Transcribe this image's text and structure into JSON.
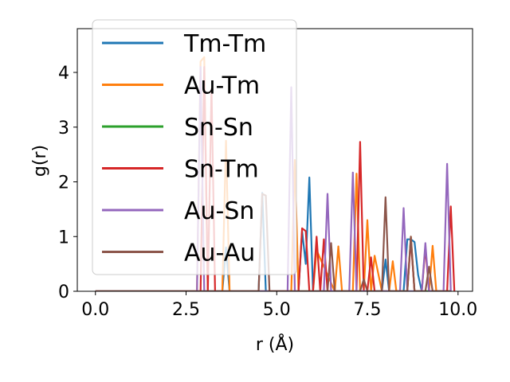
{
  "chart_data": {
    "type": "line",
    "title": "",
    "xlabel": "r (Å)",
    "ylabel": "g(r)",
    "xlim": [
      -0.5,
      10.4
    ],
    "ylim": [
      0,
      4.8
    ],
    "xticks": [
      0.0,
      2.5,
      5.0,
      7.5,
      10.0
    ],
    "xtick_labels": [
      "0.0",
      "2.5",
      "5.0",
      "7.5",
      "10.0"
    ],
    "yticks": [
      0,
      1,
      2,
      3,
      4
    ],
    "ytick_labels": [
      "0",
      "1",
      "2",
      "3",
      "4"
    ],
    "grid": false,
    "legend_position": "upper-left",
    "series": [
      {
        "name": "Tm-Tm",
        "color": "#1f77b4",
        "x": [
          0,
          3.5,
          3.6,
          3.7,
          4.5,
          4.6,
          4.7,
          5.6,
          5.7,
          5.8,
          5.9,
          6.0,
          7.9,
          8.0,
          8.1,
          8.5,
          8.6,
          8.7,
          8.8,
          8.9,
          9.0,
          9.8
        ],
        "y": [
          0,
          0,
          0.8,
          0,
          0,
          1.8,
          0,
          0,
          1.1,
          0.5,
          2.08,
          0,
          0,
          0.58,
          0,
          0,
          0.95,
          0.95,
          0.9,
          0.3,
          0,
          0
        ]
      },
      {
        "name": "Au-Tm",
        "color": "#ff7f0e",
        "x": [
          0,
          2.8,
          2.9,
          3.0,
          3.1,
          3.5,
          3.6,
          3.7,
          5.4,
          5.5,
          5.6,
          6.0,
          6.1,
          6.6,
          6.7,
          6.8,
          7.1,
          7.2,
          7.3,
          7.4,
          7.5,
          7.6,
          7.7,
          7.9,
          8.0,
          8.1,
          8.2,
          8.3,
          8.6,
          8.7,
          8.8,
          9.2,
          9.3,
          9.4,
          9.8
        ],
        "y": [
          0,
          0,
          4.2,
          4.28,
          0,
          0,
          2.75,
          0,
          0,
          2.4,
          0,
          0,
          0.75,
          0,
          0.82,
          0,
          0,
          2.15,
          0,
          0,
          1.3,
          0,
          0.65,
          0,
          0,
          0,
          0.55,
          0,
          0,
          1.0,
          0,
          0,
          0.83,
          0,
          0
        ]
      },
      {
        "name": "Sn-Sn",
        "color": "#2ca02c",
        "x": [
          0,
          9.8
        ],
        "y": [
          0,
          0
        ]
      },
      {
        "name": "Sn-Tm",
        "color": "#d62728",
        "x": [
          0,
          2.9,
          3.0,
          3.1,
          3.2,
          3.3,
          3.4,
          5.6,
          5.7,
          5.8,
          5.9,
          6.0,
          6.1,
          6.2,
          6.3,
          6.4,
          6.5,
          7.1,
          7.2,
          7.3,
          7.4,
          7.5,
          7.6,
          7.7,
          7.8,
          8.6,
          8.7,
          8.8,
          9.0,
          9.1,
          9.2,
          9.7,
          9.8,
          9.9
        ],
        "y": [
          0,
          0,
          4.1,
          0,
          3.7,
          0,
          0,
          0,
          1.15,
          1.1,
          0,
          0,
          1.0,
          0,
          0.95,
          0,
          0,
          0,
          0,
          2.73,
          0,
          0,
          0.62,
          0,
          0,
          0,
          0.95,
          0,
          0,
          0.8,
          0,
          0,
          1.55,
          0
        ]
      },
      {
        "name": "Au-Sn",
        "color": "#9467bd",
        "x": [
          0,
          2.8,
          2.9,
          3.0,
          5.3,
          5.4,
          5.5,
          6.3,
          6.4,
          6.5,
          7.0,
          7.1,
          7.2,
          8.4,
          8.5,
          8.6,
          9.0,
          9.1,
          9.2,
          9.6,
          9.7,
          9.8
        ],
        "y": [
          0,
          0,
          4.1,
          0,
          0,
          3.73,
          0,
          0,
          1.78,
          0,
          0,
          2.17,
          0,
          0,
          1.52,
          0,
          0,
          0.88,
          0,
          0,
          2.33,
          0
        ]
      },
      {
        "name": "Au-Au",
        "color": "#8c564b",
        "x": [
          0,
          4.5,
          4.6,
          4.7,
          4.8,
          6.4,
          6.5,
          6.6,
          7.3,
          7.4,
          7.5,
          7.9,
          8.0,
          8.1,
          8.6,
          8.7,
          8.8,
          9.1,
          9.2,
          9.3,
          9.8
        ],
        "y": [
          0,
          0,
          1.78,
          1.75,
          0,
          0,
          0.88,
          0,
          0,
          0.22,
          0,
          0,
          1.72,
          0,
          0,
          1.0,
          0,
          0,
          0.45,
          0,
          0
        ]
      }
    ]
  }
}
